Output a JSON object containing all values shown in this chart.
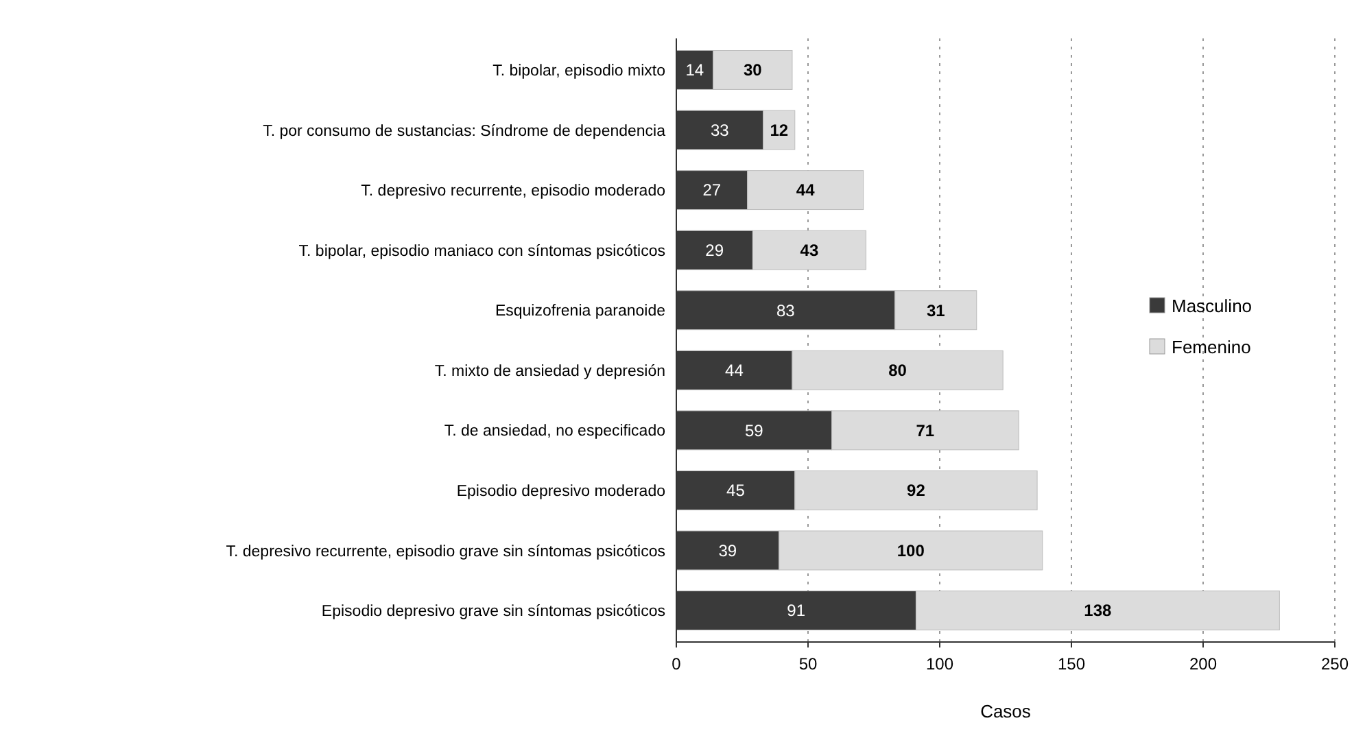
{
  "chart_data": {
    "type": "bar",
    "orientation": "horizontal",
    "stacked": true,
    "xlabel": "Casos",
    "categories": [
      "T. bipolar, episodio mixto",
      "T. por consumo de sustancias: Síndrome de dependencia",
      "T. depresivo recurrente, episodio moderado",
      "T. bipolar, episodio maniaco con síntomas psicóticos",
      "Esquizofrenia paranoide",
      "T. mixto de ansiedad y depresión",
      "T. de ansiedad, no especificado",
      "Episodio depresivo moderado",
      "T. depresivo recurrente, episodio grave sin síntomas psicóticos",
      "Episodio depresivo grave sin síntomas  psicóticos"
    ],
    "series": [
      {
        "name": "Masculino",
        "color": "#3a3a3a",
        "values": [
          14,
          33,
          27,
          29,
          83,
          44,
          59,
          45,
          39,
          91
        ]
      },
      {
        "name": "Femenino",
        "color": "#dcdcdc",
        "values": [
          30,
          12,
          44,
          43,
          31,
          80,
          71,
          92,
          100,
          138
        ]
      }
    ],
    "xlim": [
      0,
      250
    ],
    "xticks": [
      0,
      50,
      100,
      150,
      200,
      250
    ],
    "grid": "x",
    "legend": "right",
    "data_labels": true
  }
}
